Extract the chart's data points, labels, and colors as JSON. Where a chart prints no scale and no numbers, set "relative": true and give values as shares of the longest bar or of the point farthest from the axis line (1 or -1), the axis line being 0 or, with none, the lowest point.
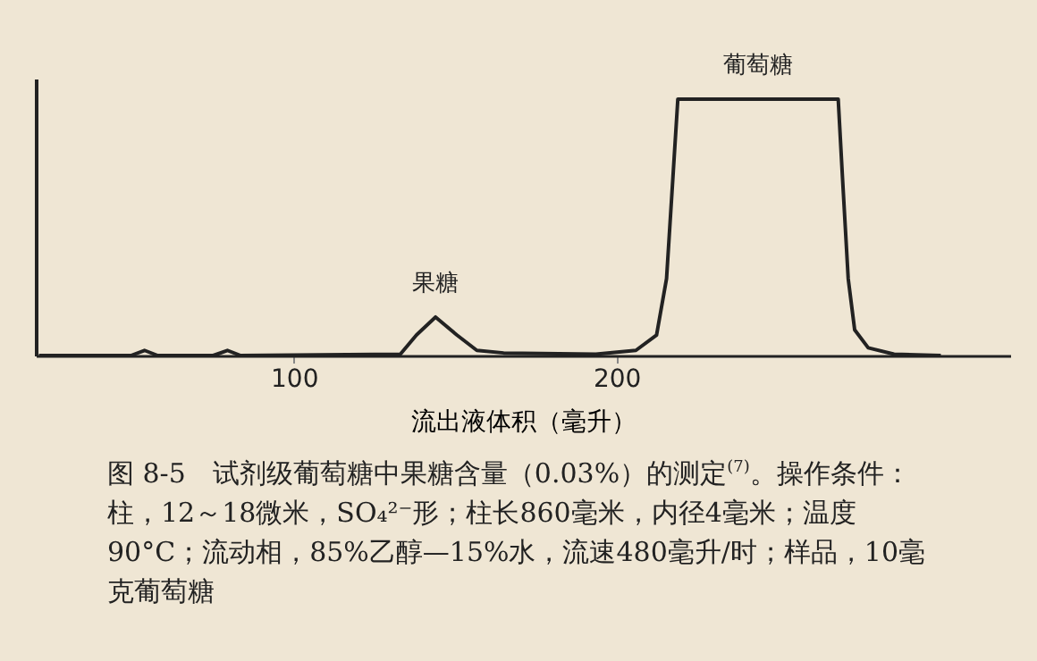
{
  "chart_data": {
    "type": "line",
    "relative": true,
    "xlabel": "流出液体积（毫升）",
    "x": [
      21,
      49.5,
      53.7,
      57.8,
      75,
      79.4,
      83.5,
      133,
      138,
      143.9,
      150.5,
      156.7,
      165,
      193.6,
      206,
      212.4,
      215.5,
      217.5,
      219,
      268.7,
      270,
      271.8,
      273.8,
      278,
      286,
      300.5
    ],
    "series": [
      {
        "color": "#222222",
        "values": [
          0,
          0,
          0.02,
          0,
          0,
          0.02,
          0,
          0.005,
          0.08,
          0.15,
          0.08,
          0.02,
          0.01,
          0.005,
          0.02,
          0.08,
          0.3,
          0.7,
          1,
          1,
          0.7,
          0.3,
          0.1,
          0.03,
          0.005,
          0
        ]
      }
    ],
    "xlim": [
      20,
      322
    ],
    "xticks": [
      100,
      200
    ],
    "grid": false,
    "marker": "none",
    "line_style": "solid",
    "annotations": [
      {
        "text": "果糖",
        "x": 143.9,
        "y": 0.15
      },
      {
        "text": "葡萄糖",
        "x": 244,
        "y": 1
      },
      "图 8-5　试剂级葡萄糖中果糖含量（0.03%）的测定$^{(7)}$。操作条件：柱，12～18微米，SO₄²⁻形；柱长860毫米，内径4毫米；温度90°C；流动相，85%乙醇—15%水，流速480毫升/时；样品，10毫克葡萄糖"
    ]
  }
}
